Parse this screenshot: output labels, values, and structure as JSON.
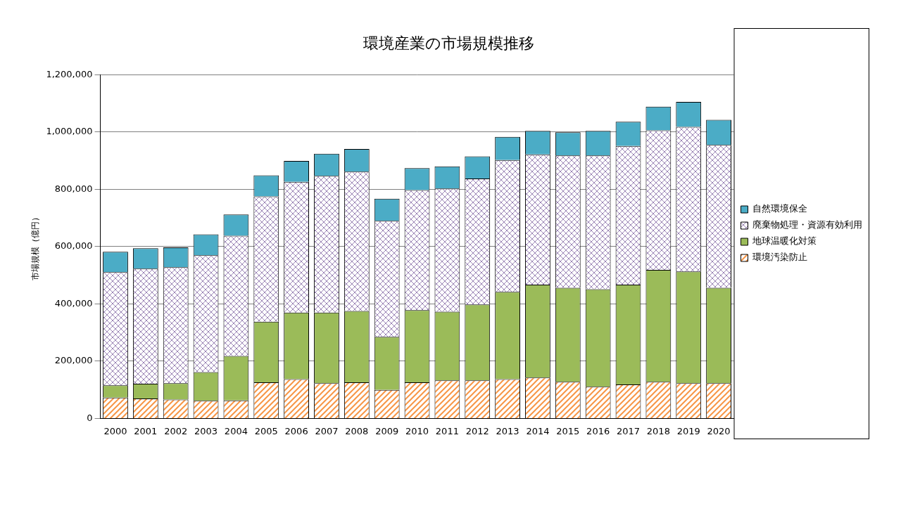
{
  "chart_data": {
    "type": "bar",
    "title": "環境産業の市場規模推移",
    "y_label": "市場規模（億円）",
    "categories": [
      "2000",
      "2001",
      "2002",
      "2003",
      "2004",
      "2005",
      "2006",
      "2007",
      "2008",
      "2009",
      "2010",
      "2011",
      "2012",
      "2013",
      "2014",
      "2015",
      "2016",
      "2017",
      "2018",
      "2019",
      "2020"
    ],
    "series": [
      {
        "name": "環境汚染防止",
        "color": "#F79646",
        "values": [
          73000,
          70000,
          66000,
          62000,
          63000,
          126000,
          137000,
          123000,
          126000,
          100000,
          126000,
          133000,
          133000,
          137000,
          143000,
          128000,
          111000,
          119000,
          128000,
          123000,
          123000
        ]
      },
      {
        "name": "地球温暖化対策",
        "color": "#9BBB59",
        "values": [
          43000,
          51000,
          57000,
          100000,
          155000,
          212000,
          233000,
          247000,
          249000,
          185000,
          252000,
          240000,
          265000,
          305000,
          324000,
          328000,
          340000,
          348000,
          391000,
          390000,
          333000
        ]
      },
      {
        "name": "廃棄物処理・資源有効利用",
        "color": "#8064A2",
        "values": [
          395000,
          402000,
          405000,
          408000,
          420000,
          437000,
          456000,
          477000,
          487000,
          405000,
          419000,
          430000,
          440000,
          460000,
          455000,
          462000,
          467000,
          484000,
          487000,
          505000,
          499000
        ]
      },
      {
        "name": "自然環境保全",
        "color": "#4BACC6",
        "values": [
          71000,
          71000,
          69000,
          73000,
          74000,
          74000,
          73000,
          77000,
          79000,
          77000,
          77000,
          77000,
          77000,
          81000,
          82000,
          81000,
          86000,
          85000,
          83000,
          87000,
          88000
        ]
      }
    ],
    "stacked": true,
    "grid": true,
    "legend": "right",
    "ylim": [
      0,
      1200000
    ],
    "yticks": [
      0,
      {
        "value": 200000,
        "label": "200,000"
      },
      {
        "value": 400000,
        "label": "400,000"
      },
      {
        "value": 600000,
        "label": "600,000"
      },
      {
        "value": 800000,
        "label": "800,000"
      },
      {
        "value": 1000000,
        "label": "1,000,000"
      },
      {
        "value": 1200000,
        "label": "1,200,000"
      }
    ]
  }
}
